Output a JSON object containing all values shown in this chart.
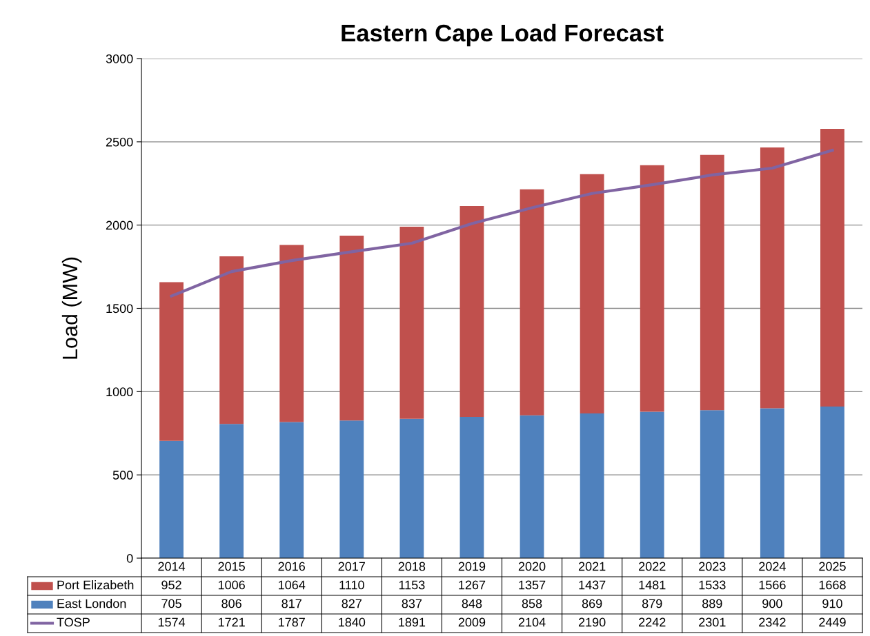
{
  "chart_data": {
    "type": "bar",
    "title": "Eastern Cape Load Forecast",
    "ylabel": "Load (MW)",
    "stacked": true,
    "data_labels": true,
    "grid": "y",
    "legend": "bottom",
    "categories": [
      "2014",
      "2015",
      "2016",
      "2017",
      "2018",
      "2019",
      "2020",
      "2021",
      "2022",
      "2023",
      "2024",
      "2025"
    ],
    "ylim": [
      0,
      3000
    ],
    "yticks": [
      0,
      500,
      1000,
      1500,
      2000,
      2500,
      3000
    ],
    "series": [
      {
        "name": "East London",
        "color": "#4f81bd",
        "values": [
          705,
          806,
          817,
          827,
          837,
          848,
          858,
          869,
          879,
          889,
          900,
          910
        ]
      },
      {
        "name": "Port Elizabeth",
        "color": "#c0504d",
        "values": [
          952,
          1006,
          1064,
          1110,
          1153,
          1267,
          1357,
          1437,
          1481,
          1533,
          1566,
          1668
        ]
      },
      {
        "name": "TOSP",
        "type": "line",
        "color": "#8064a2",
        "values": [
          1574,
          1721,
          1787,
          1840,
          1891,
          2009,
          2104,
          2190,
          2242,
          2301,
          2342,
          2449
        ]
      }
    ]
  }
}
